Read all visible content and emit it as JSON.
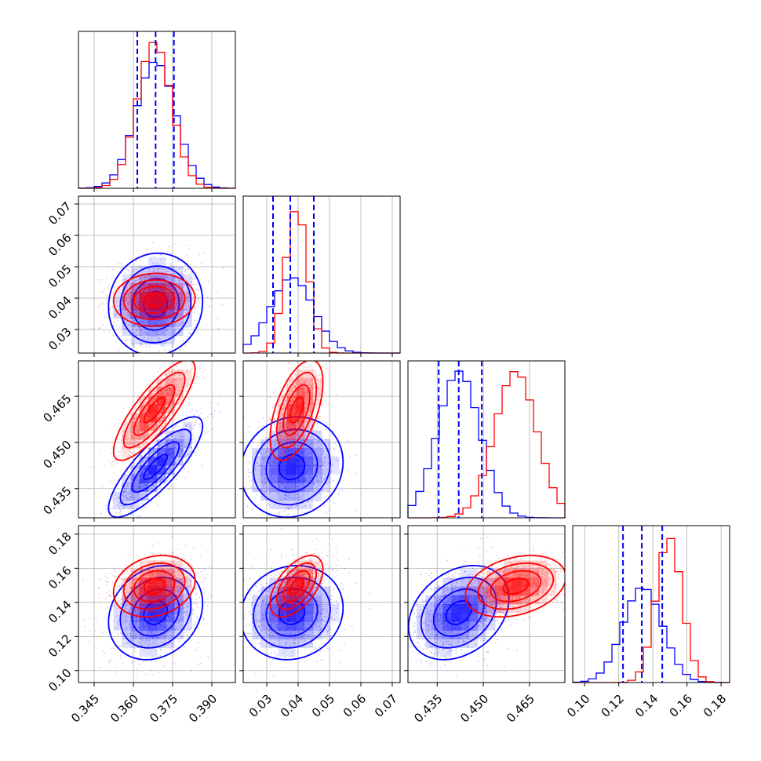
{
  "chart_data": {
    "type": "corner",
    "colors": {
      "series_a": "#0000ff",
      "series_b": "#ff0000"
    },
    "grid": true,
    "parameters": [
      {
        "index": 0,
        "range": [
          0.339,
          0.399
        ],
        "ticks": [
          0.345,
          0.36,
          0.375,
          0.39
        ],
        "tick_labels": [
          "0.345",
          "0.360",
          "0.375",
          "0.390"
        ]
      },
      {
        "index": 1,
        "range": [
          0.0225,
          0.0725
        ],
        "ticks": [
          0.03,
          0.04,
          0.05,
          0.06,
          0.07
        ],
        "tick_labels": [
          "0.03",
          "0.04",
          "0.05",
          "0.06",
          "0.07"
        ]
      },
      {
        "index": 2,
        "range": [
          0.4255,
          0.4765
        ],
        "ticks": [
          0.435,
          0.45,
          0.465
        ],
        "tick_labels": [
          "0.435",
          "0.450",
          "0.465"
        ]
      },
      {
        "index": 3,
        "range": [
          0.093,
          0.185
        ],
        "ticks": [
          0.1,
          0.12,
          0.14,
          0.16,
          0.18
        ],
        "tick_labels": [
          "0.10",
          "0.12",
          "0.14",
          "0.16",
          "0.18"
        ]
      }
    ],
    "series": [
      {
        "color": "#0000ff",
        "mean": [
          0.3685,
          0.038,
          0.442,
          0.134
        ],
        "std": [
          0.0075,
          0.0068,
          0.0068,
          0.0115
        ],
        "correlation": [
          [
            1.0,
            0.05,
            0.82,
            0.2
          ],
          [
            0.05,
            1.0,
            0.1,
            0.1
          ],
          [
            0.82,
            0.1,
            1.0,
            0.3
          ],
          [
            0.2,
            0.1,
            0.3,
            1.0
          ]
        ],
        "quantiles": [
          [
            0.3615,
            0.3685,
            0.3755
          ],
          [
            0.032,
            0.0375,
            0.045
          ],
          [
            0.4355,
            0.442,
            0.4495
          ],
          [
            0.1225,
            0.1335,
            0.1455
          ]
        ]
      },
      {
        "color": "#ff0000",
        "mean": [
          0.368,
          0.0395,
          0.4605,
          0.1495
        ],
        "std": [
          0.0065,
          0.0035,
          0.0068,
          0.0075
        ],
        "correlation": [
          [
            1.0,
            0.05,
            0.82,
            0.2
          ],
          [
            0.05,
            1.0,
            0.55,
            0.55
          ],
          [
            0.82,
            0.55,
            1.0,
            0.3
          ],
          [
            0.2,
            0.55,
            0.3,
            1.0
          ]
        ]
      }
    ]
  }
}
